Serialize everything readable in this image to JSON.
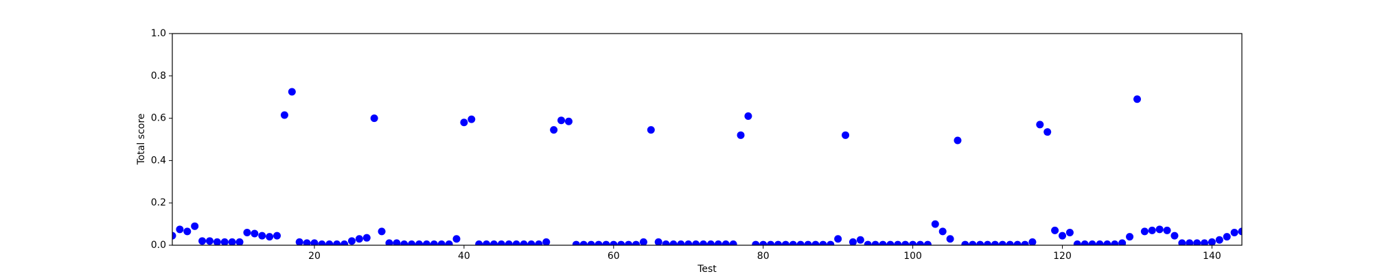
{
  "chart_data": {
    "type": "scatter",
    "x_label": "Test",
    "y_label": "Total score",
    "x": [
      1,
      2,
      3,
      4,
      5,
      6,
      7,
      8,
      9,
      10,
      11,
      12,
      13,
      14,
      15,
      16,
      17,
      18,
      19,
      20,
      21,
      22,
      23,
      24,
      25,
      26,
      27,
      28,
      29,
      30,
      31,
      32,
      33,
      34,
      35,
      36,
      37,
      38,
      39,
      40,
      41,
      42,
      43,
      44,
      45,
      46,
      47,
      48,
      49,
      50,
      51,
      52,
      53,
      54,
      55,
      56,
      57,
      58,
      59,
      60,
      61,
      62,
      63,
      64,
      65,
      66,
      67,
      68,
      69,
      70,
      71,
      72,
      73,
      74,
      75,
      76,
      77,
      78,
      79,
      80,
      81,
      82,
      83,
      84,
      85,
      86,
      87,
      88,
      89,
      90,
      91,
      92,
      93,
      94,
      95,
      96,
      97,
      98,
      99,
      100,
      101,
      102,
      103,
      104,
      105,
      106,
      107,
      108,
      109,
      110,
      111,
      112,
      113,
      114,
      115,
      116,
      117,
      118,
      119,
      120,
      121,
      122,
      123,
      124,
      125,
      126,
      127,
      128,
      129,
      130,
      131,
      132,
      133,
      134,
      135,
      136,
      137,
      138,
      139,
      140,
      141,
      142,
      143,
      144
    ],
    "values": [
      0.045,
      0.075,
      0.065,
      0.09,
      0.02,
      0.02,
      0.015,
      0.015,
      0.015,
      0.015,
      0.06,
      0.055,
      0.045,
      0.04,
      0.045,
      0.615,
      0.725,
      0.015,
      0.01,
      0.01,
      0.005,
      0.005,
      0.005,
      0.005,
      0.02,
      0.03,
      0.035,
      0.6,
      0.065,
      0.01,
      0.01,
      0.005,
      0.005,
      0.005,
      0.005,
      0.005,
      0.005,
      0.005,
      0.03,
      0.58,
      0.595,
      0.005,
      0.005,
      0.005,
      0.005,
      0.005,
      0.005,
      0.005,
      0.005,
      0.005,
      0.015,
      0.545,
      0.59,
      0.585,
      0.003,
      0.003,
      0.003,
      0.003,
      0.003,
      0.003,
      0.003,
      0.003,
      0.003,
      0.015,
      0.545,
      0.015,
      0.005,
      0.005,
      0.005,
      0.005,
      0.005,
      0.005,
      0.005,
      0.005,
      0.005,
      0.005,
      0.52,
      0.61,
      0.003,
      0.003,
      0.003,
      0.003,
      0.003,
      0.003,
      0.003,
      0.003,
      0.003,
      0.003,
      0.003,
      0.03,
      0.52,
      0.015,
      0.025,
      0.003,
      0.003,
      0.003,
      0.003,
      0.003,
      0.003,
      0.003,
      0.003,
      0.003,
      0.1,
      0.065,
      0.03,
      0.495,
      0.003,
      0.003,
      0.003,
      0.003,
      0.003,
      0.003,
      0.003,
      0.003,
      0.003,
      0.015,
      0.57,
      0.535,
      0.07,
      0.045,
      0.06,
      0.005,
      0.005,
      0.005,
      0.005,
      0.005,
      0.005,
      0.01,
      0.04,
      0.69,
      0.065,
      0.07,
      0.075,
      0.07,
      0.045,
      0.01,
      0.01,
      0.01,
      0.01,
      0.015,
      0.025,
      0.04,
      0.06,
      0.065
    ],
    "color": "#0000ff",
    "xlim": [
      1,
      144
    ],
    "xticks": [
      20,
      40,
      60,
      80,
      100,
      120,
      140
    ],
    "ylim": [
      0,
      1
    ],
    "yticks": [
      {
        "value": 0,
        "label": "0.0"
      },
      {
        "value": 0.2,
        "label": "0.2"
      },
      {
        "value": 0.4,
        "label": "0.4"
      },
      {
        "value": 0.6,
        "label": "0.6"
      },
      {
        "value": 0.8,
        "label": "0.8"
      },
      {
        "value": 1,
        "label": "1.0"
      }
    ]
  }
}
